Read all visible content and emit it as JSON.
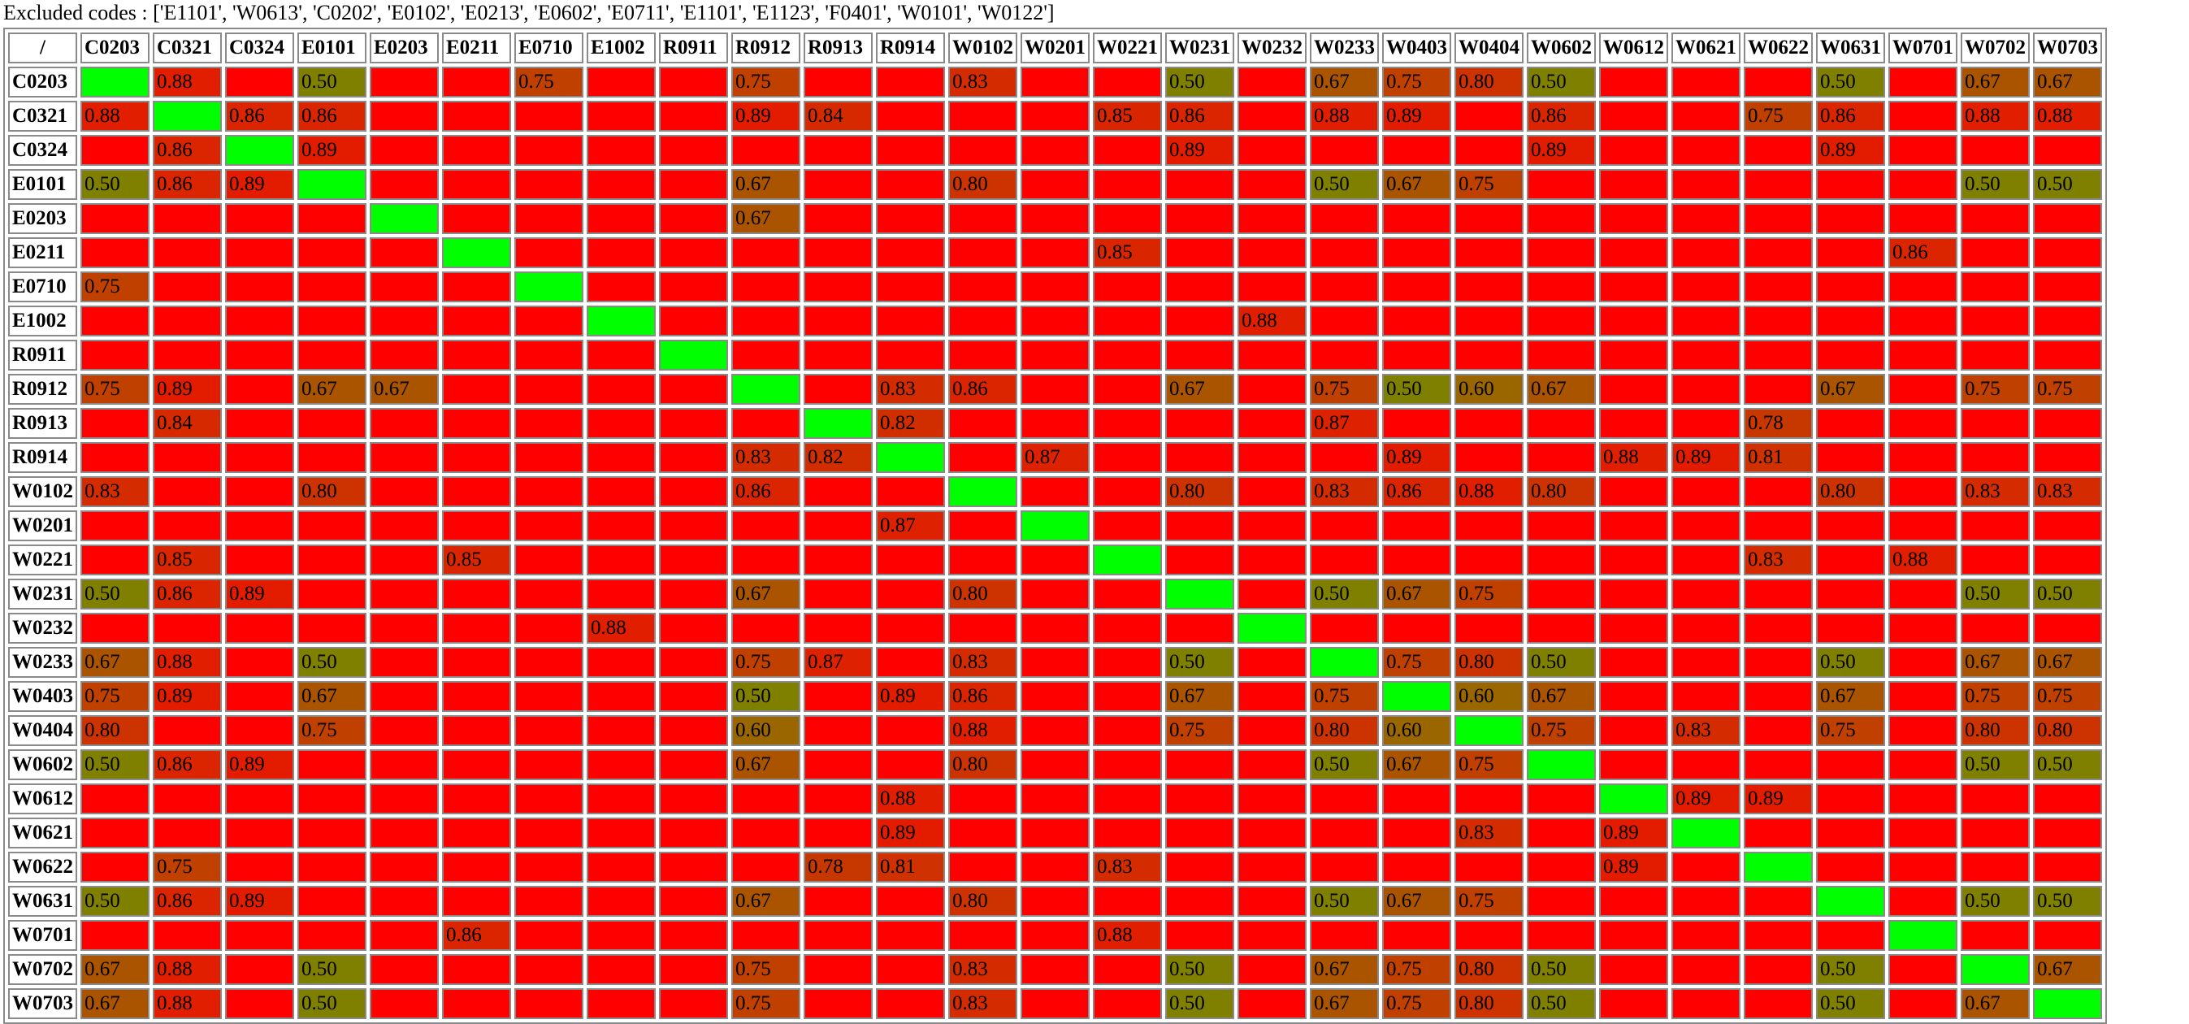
{
  "excluded_text": "Excluded codes : ['E1101', 'W0613', 'C0202', 'E0102', 'E0213', 'E0602', 'E0711', 'E1101', 'E1123', 'F0401', 'W0101', 'W0122']",
  "colors": {
    "diagonal": "#00ff00",
    "low": "#808000",
    "high": "#ff0000"
  },
  "chart_data": {
    "type": "heatmap",
    "corner": "/",
    "codes": [
      "C0203",
      "C0321",
      "C0324",
      "E0101",
      "E0203",
      "E0211",
      "E0710",
      "E1002",
      "R0911",
      "R0912",
      "R0913",
      "R0914",
      "W0102",
      "W0201",
      "W0221",
      "W0231",
      "W0232",
      "W0233",
      "W0403",
      "W0404",
      "W0602",
      "W0612",
      "W0621",
      "W0622",
      "W0631",
      "W0701",
      "W0702",
      "W0703"
    ],
    "values": [
      [
        null,
        0.88,
        null,
        0.5,
        null,
        null,
        0.75,
        null,
        null,
        0.75,
        null,
        null,
        0.83,
        null,
        null,
        0.5,
        null,
        0.67,
        0.75,
        0.8,
        0.5,
        null,
        null,
        null,
        0.5,
        null,
        0.67,
        0.67
      ],
      [
        0.88,
        null,
        0.86,
        0.86,
        null,
        null,
        null,
        null,
        null,
        0.89,
        0.84,
        null,
        null,
        null,
        0.85,
        0.86,
        null,
        0.88,
        0.89,
        null,
        0.86,
        null,
        null,
        0.75,
        0.86,
        null,
        0.88,
        0.88
      ],
      [
        null,
        0.86,
        null,
        0.89,
        null,
        null,
        null,
        null,
        null,
        null,
        null,
        null,
        null,
        null,
        null,
        0.89,
        null,
        null,
        null,
        null,
        0.89,
        null,
        null,
        null,
        0.89,
        null,
        null,
        null
      ],
      [
        0.5,
        0.86,
        0.89,
        null,
        null,
        null,
        null,
        null,
        null,
        0.67,
        null,
        null,
        0.8,
        null,
        null,
        null,
        null,
        0.5,
        0.67,
        0.75,
        null,
        null,
        null,
        null,
        null,
        null,
        0.5,
        0.5
      ],
      [
        null,
        null,
        null,
        null,
        null,
        null,
        null,
        null,
        null,
        0.67,
        null,
        null,
        null,
        null,
        null,
        null,
        null,
        null,
        null,
        null,
        null,
        null,
        null,
        null,
        null,
        null,
        null,
        null
      ],
      [
        null,
        null,
        null,
        null,
        null,
        null,
        null,
        null,
        null,
        null,
        null,
        null,
        null,
        null,
        0.85,
        null,
        null,
        null,
        null,
        null,
        null,
        null,
        null,
        null,
        null,
        0.86,
        null,
        null
      ],
      [
        0.75,
        null,
        null,
        null,
        null,
        null,
        null,
        null,
        null,
        null,
        null,
        null,
        null,
        null,
        null,
        null,
        null,
        null,
        null,
        null,
        null,
        null,
        null,
        null,
        null,
        null,
        null,
        null
      ],
      [
        null,
        null,
        null,
        null,
        null,
        null,
        null,
        null,
        null,
        null,
        null,
        null,
        null,
        null,
        null,
        null,
        0.88,
        null,
        null,
        null,
        null,
        null,
        null,
        null,
        null,
        null,
        null,
        null
      ],
      [
        null,
        null,
        null,
        null,
        null,
        null,
        null,
        null,
        null,
        null,
        null,
        null,
        null,
        null,
        null,
        null,
        null,
        null,
        null,
        null,
        null,
        null,
        null,
        null,
        null,
        null,
        null,
        null
      ],
      [
        0.75,
        0.89,
        null,
        0.67,
        0.67,
        null,
        null,
        null,
        null,
        null,
        null,
        0.83,
        0.86,
        null,
        null,
        0.67,
        null,
        0.75,
        0.5,
        0.6,
        0.67,
        null,
        null,
        null,
        0.67,
        null,
        0.75,
        0.75
      ],
      [
        null,
        0.84,
        null,
        null,
        null,
        null,
        null,
        null,
        null,
        null,
        null,
        0.82,
        null,
        null,
        null,
        null,
        null,
        0.87,
        null,
        null,
        null,
        null,
        null,
        0.78,
        null,
        null,
        null,
        null
      ],
      [
        null,
        null,
        null,
        null,
        null,
        null,
        null,
        null,
        null,
        0.83,
        0.82,
        null,
        null,
        0.87,
        null,
        null,
        null,
        null,
        0.89,
        null,
        null,
        0.88,
        0.89,
        0.81,
        null,
        null,
        null,
        null
      ],
      [
        0.83,
        null,
        null,
        0.8,
        null,
        null,
        null,
        null,
        null,
        0.86,
        null,
        null,
        null,
        null,
        null,
        0.8,
        null,
        0.83,
        0.86,
        0.88,
        0.8,
        null,
        null,
        null,
        0.8,
        null,
        0.83,
        0.83
      ],
      [
        null,
        null,
        null,
        null,
        null,
        null,
        null,
        null,
        null,
        null,
        null,
        0.87,
        null,
        null,
        null,
        null,
        null,
        null,
        null,
        null,
        null,
        null,
        null,
        null,
        null,
        null,
        null,
        null
      ],
      [
        null,
        0.85,
        null,
        null,
        null,
        0.85,
        null,
        null,
        null,
        null,
        null,
        null,
        null,
        null,
        null,
        null,
        null,
        null,
        null,
        null,
        null,
        null,
        null,
        0.83,
        null,
        0.88,
        null,
        null
      ],
      [
        0.5,
        0.86,
        0.89,
        null,
        null,
        null,
        null,
        null,
        null,
        0.67,
        null,
        null,
        0.8,
        null,
        null,
        null,
        null,
        0.5,
        0.67,
        0.75,
        null,
        null,
        null,
        null,
        null,
        null,
        0.5,
        0.5
      ],
      [
        null,
        null,
        null,
        null,
        null,
        null,
        null,
        0.88,
        null,
        null,
        null,
        null,
        null,
        null,
        null,
        null,
        null,
        null,
        null,
        null,
        null,
        null,
        null,
        null,
        null,
        null,
        null,
        null
      ],
      [
        0.67,
        0.88,
        null,
        0.5,
        null,
        null,
        null,
        null,
        null,
        0.75,
        0.87,
        null,
        0.83,
        null,
        null,
        0.5,
        null,
        null,
        0.75,
        0.8,
        0.5,
        null,
        null,
        null,
        0.5,
        null,
        0.67,
        0.67
      ],
      [
        0.75,
        0.89,
        null,
        0.67,
        null,
        null,
        null,
        null,
        null,
        0.5,
        null,
        0.89,
        0.86,
        null,
        null,
        0.67,
        null,
        0.75,
        null,
        0.6,
        0.67,
        null,
        null,
        null,
        0.67,
        null,
        0.75,
        0.75
      ],
      [
        0.8,
        null,
        null,
        0.75,
        null,
        null,
        null,
        null,
        null,
        0.6,
        null,
        null,
        0.88,
        null,
        null,
        0.75,
        null,
        0.8,
        0.6,
        null,
        0.75,
        null,
        0.83,
        null,
        0.75,
        null,
        0.8,
        0.8
      ],
      [
        0.5,
        0.86,
        0.89,
        null,
        null,
        null,
        null,
        null,
        null,
        0.67,
        null,
        null,
        0.8,
        null,
        null,
        null,
        null,
        0.5,
        0.67,
        0.75,
        null,
        null,
        null,
        null,
        null,
        null,
        0.5,
        0.5
      ],
      [
        null,
        null,
        null,
        null,
        null,
        null,
        null,
        null,
        null,
        null,
        null,
        0.88,
        null,
        null,
        null,
        null,
        null,
        null,
        null,
        null,
        null,
        null,
        0.89,
        0.89,
        null,
        null,
        null,
        null
      ],
      [
        null,
        null,
        null,
        null,
        null,
        null,
        null,
        null,
        null,
        null,
        null,
        0.89,
        null,
        null,
        null,
        null,
        null,
        null,
        null,
        0.83,
        null,
        0.89,
        null,
        null,
        null,
        null,
        null,
        null
      ],
      [
        null,
        0.75,
        null,
        null,
        null,
        null,
        null,
        null,
        null,
        null,
        0.78,
        0.81,
        null,
        null,
        0.83,
        null,
        null,
        null,
        null,
        null,
        null,
        0.89,
        null,
        null,
        null,
        null,
        null,
        null
      ],
      [
        0.5,
        0.86,
        0.89,
        null,
        null,
        null,
        null,
        null,
        null,
        0.67,
        null,
        null,
        0.8,
        null,
        null,
        null,
        null,
        0.5,
        0.67,
        0.75,
        null,
        null,
        null,
        null,
        null,
        null,
        0.5,
        0.5
      ],
      [
        null,
        null,
        null,
        null,
        null,
        0.86,
        null,
        null,
        null,
        null,
        null,
        null,
        null,
        null,
        0.88,
        null,
        null,
        null,
        null,
        null,
        null,
        null,
        null,
        null,
        null,
        null,
        null,
        null
      ],
      [
        0.67,
        0.88,
        null,
        0.5,
        null,
        null,
        null,
        null,
        null,
        0.75,
        null,
        null,
        0.83,
        null,
        null,
        0.5,
        null,
        0.67,
        0.75,
        0.8,
        0.5,
        null,
        null,
        null,
        0.5,
        null,
        null,
        0.67
      ],
      [
        0.67,
        0.88,
        null,
        0.5,
        null,
        null,
        null,
        null,
        null,
        0.75,
        null,
        null,
        0.83,
        null,
        null,
        0.5,
        null,
        0.67,
        0.75,
        0.8,
        0.5,
        null,
        null,
        null,
        0.5,
        null,
        0.67,
        null
      ]
    ]
  }
}
